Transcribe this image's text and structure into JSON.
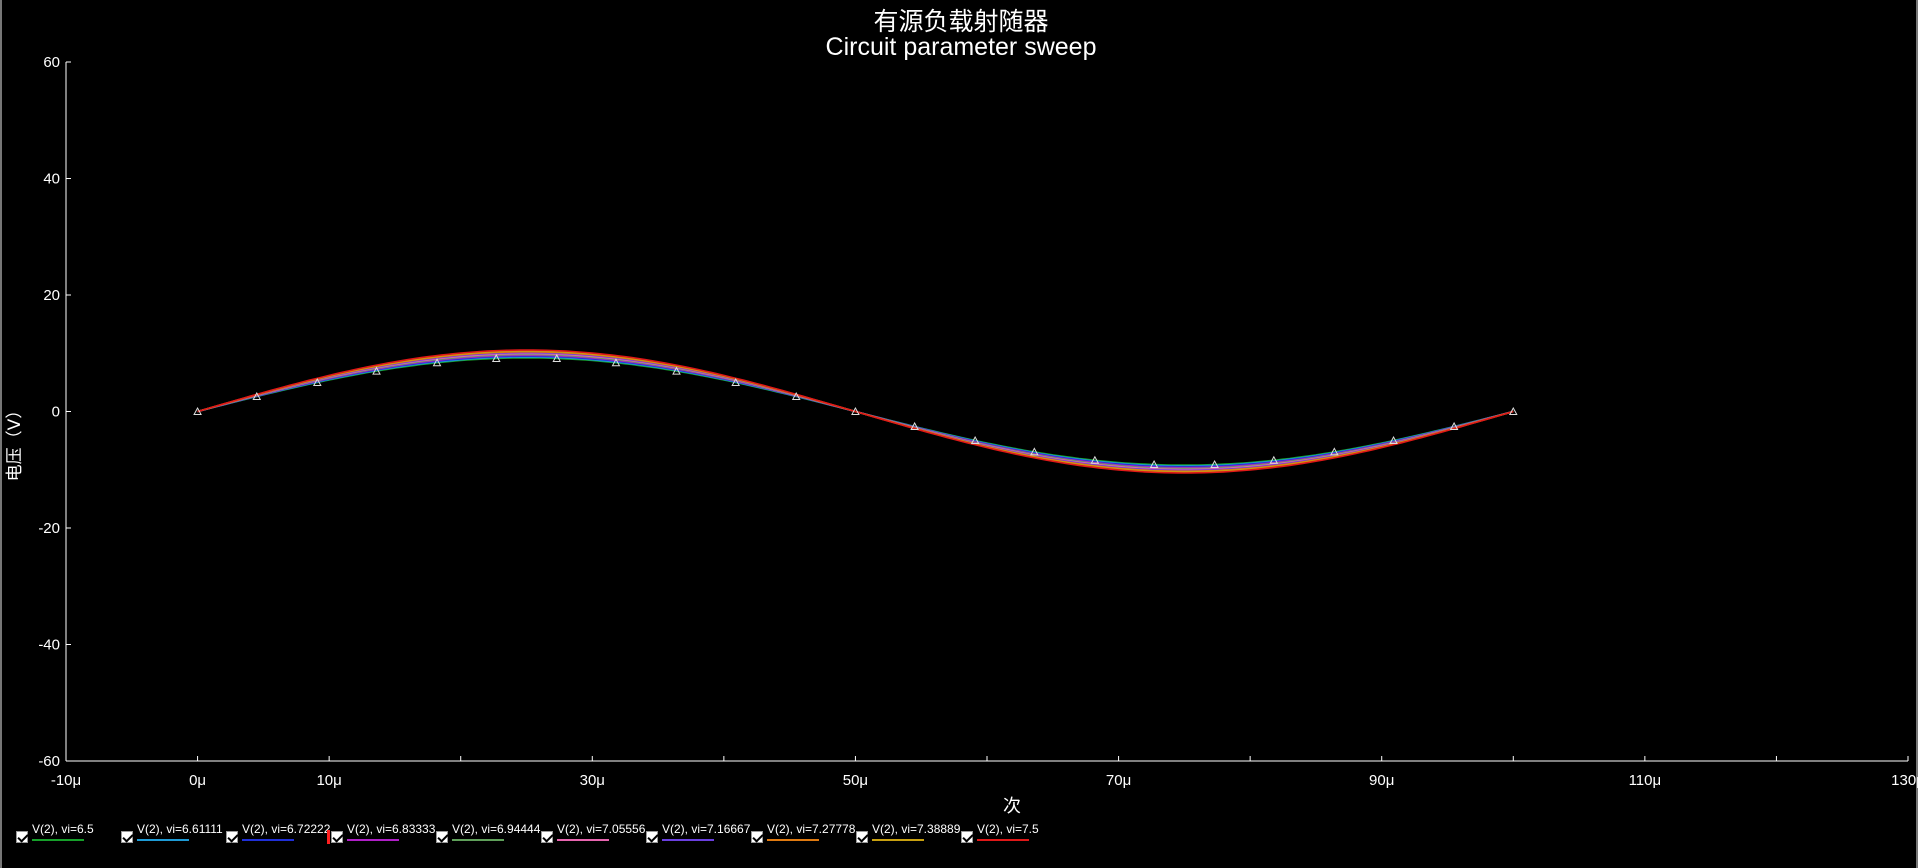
{
  "chart_data": {
    "type": "line",
    "title": "有源负载射随器",
    "subtitle": "Circuit parameter sweep",
    "xlabel": "次",
    "ylabel": "电压（V）",
    "xlim": [
      -10,
      130
    ],
    "ylim": [
      -60,
      60
    ],
    "x_unit_suffix": "μ",
    "xticks": [
      -10,
      0,
      10,
      30,
      50,
      70,
      90,
      110,
      130
    ],
    "yticks": [
      60,
      40,
      20,
      0,
      -20,
      -40,
      -60
    ],
    "grid": false,
    "legend_position": "bottom-left",
    "x_min_data": 0,
    "x_max_data": 100,
    "series": [
      {
        "name": "V(2),  vi=6.5",
        "color": "#16a02a",
        "amplitude": 9.2,
        "marker_x": [
          0,
          4.5,
          9.1,
          13.6,
          18.2,
          22.7,
          27.3,
          31.8,
          36.4,
          40.9,
          45.5,
          50.0,
          54.5,
          59.1,
          63.6,
          68.2,
          72.7,
          77.3,
          81.8,
          86.4,
          90.9,
          95.5,
          100
        ]
      },
      {
        "name": "V(2),  vi=6.61111",
        "color": "#1e9bd6",
        "amplitude": 9.35
      },
      {
        "name": "V(2),  vi=6.72222",
        "color": "#1f2fd8",
        "amplitude": 9.5
      },
      {
        "name": "V(2),  vi=6.83333",
        "color": "#b01fc8",
        "amplitude": 9.65
      },
      {
        "name": "V(2),  vi=6.94444",
        "color": "#5fa05a",
        "amplitude": 9.8
      },
      {
        "name": "V(2),  vi=7.05556",
        "color": "#e865b0",
        "amplitude": 9.95
      },
      {
        "name": "V(2),  vi=7.16667",
        "color": "#6a3fe0",
        "amplitude": 10.1
      },
      {
        "name": "V(2),  vi=7.27778",
        "color": "#e07a10",
        "amplitude": 10.25
      },
      {
        "name": "V(2),  vi=7.38889",
        "color": "#c8a010",
        "amplitude": 10.4
      },
      {
        "name": "V(2),  vi=7.5",
        "color": "#e01818",
        "amplitude": 10.55
      }
    ],
    "period": 100,
    "marker_color": "#dddddd"
  },
  "legend": {
    "spacing": 105
  }
}
